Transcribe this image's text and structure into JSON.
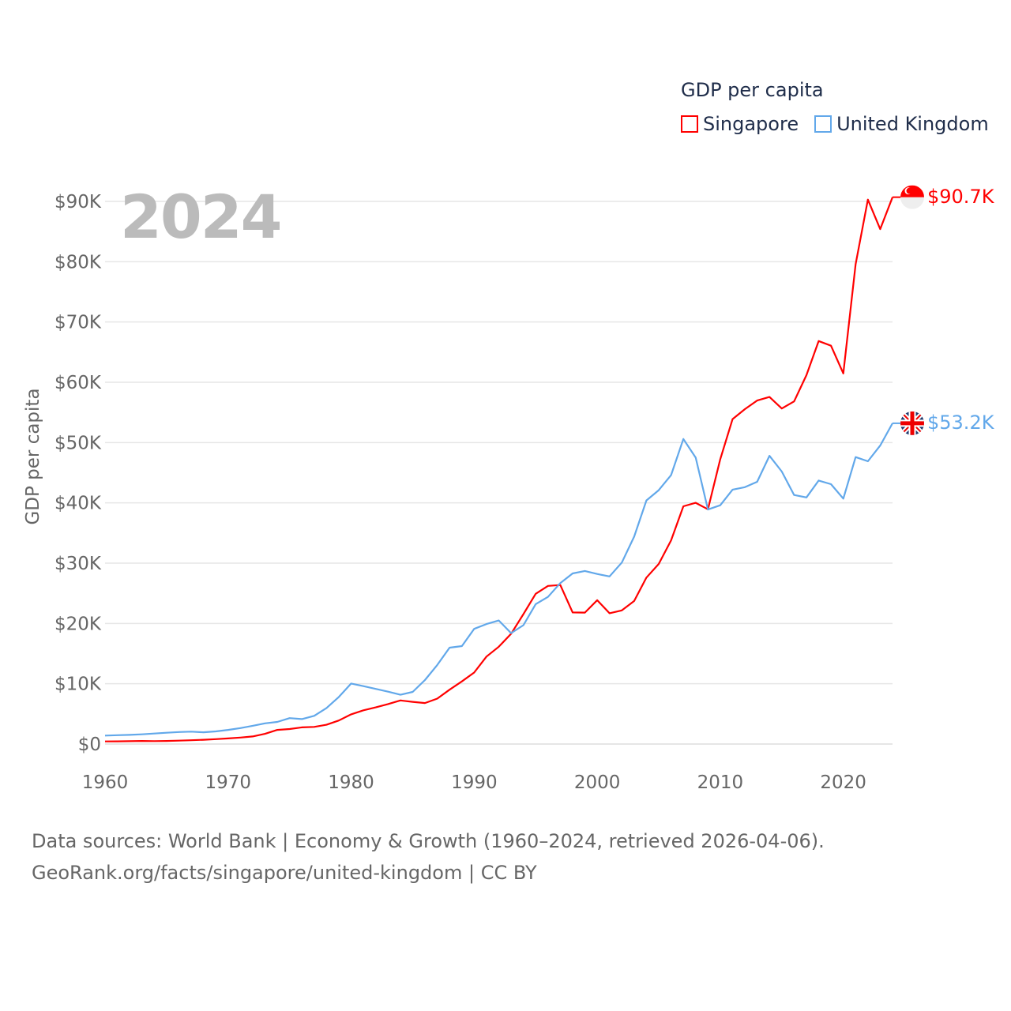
{
  "chart_data": {
    "type": "line",
    "title": "GDP per capita",
    "ylabel": "GDP per capita",
    "xlabel": "",
    "year_display": "2024",
    "xlim": [
      1960,
      2024
    ],
    "ylim": [
      0,
      90000
    ],
    "x_ticks": [
      "1960",
      "1970",
      "1980",
      "1990",
      "2000",
      "2010",
      "2020"
    ],
    "y_ticks": [
      "$0",
      "$10K",
      "$20K",
      "$30K",
      "$40K",
      "$50K",
      "$60K",
      "$70K",
      "$80K",
      "$90K"
    ],
    "grid": true,
    "legend_position": "top-right",
    "x_start": 1960,
    "series": [
      {
        "name": "Singapore",
        "color": "#ff0000",
        "end_label": "$90.7K",
        "flag": "singapore-flag",
        "values": [
          428,
          449,
          472,
          511,
          485,
          517,
          567,
          626,
          708,
          813,
          926,
          1071,
          1264,
          1685,
          2342,
          2490,
          2759,
          2846,
          3194,
          3901,
          4929,
          5596,
          6078,
          6633,
          7228,
          7001,
          6800,
          7539,
          9018,
          10394,
          11862,
          14502,
          16136,
          18290,
          21553,
          24915,
          26233,
          26376,
          21829,
          21796,
          23853,
          21700,
          22160,
          23730,
          27600,
          29870,
          33770,
          39430,
          40010,
          38930,
          47240,
          53890,
          55550,
          56970,
          57560,
          55650,
          56830,
          61180,
          66840,
          66070,
          61470,
          79600,
          90300,
          85400,
          90700
        ]
      },
      {
        "name": "United Kingdom",
        "color": "#62a8ea",
        "end_label": "$53.2K",
        "flag": "united-kingdom-flag",
        "values": [
          1398,
          1472,
          1526,
          1613,
          1748,
          1875,
          1989,
          2062,
          1953,
          2100,
          2348,
          2650,
          3030,
          3426,
          3666,
          4300,
          4138,
          4681,
          5977,
          7804,
          10032,
          9599,
          9146,
          8691,
          8180,
          8652,
          10611,
          13119,
          15987,
          16239,
          19095,
          19900,
          20487,
          18389,
          19710,
          23200,
          24400,
          26700,
          28300,
          28700,
          28200,
          27800,
          30100,
          34400,
          40400,
          42100,
          44600,
          50600,
          47500,
          38900,
          39600,
          42200,
          42600,
          43500,
          47800,
          45200,
          41300,
          40900,
          43700,
          43100,
          40700,
          47600,
          46900,
          49500,
          53200
        ]
      }
    ]
  },
  "source": {
    "line1": "Data sources: World Bank | Economy & Growth (1960–2024, retrieved 2026-04-06).",
    "line2": "GeoRank.org/facts/singapore/united-kingdom | CC BY"
  }
}
